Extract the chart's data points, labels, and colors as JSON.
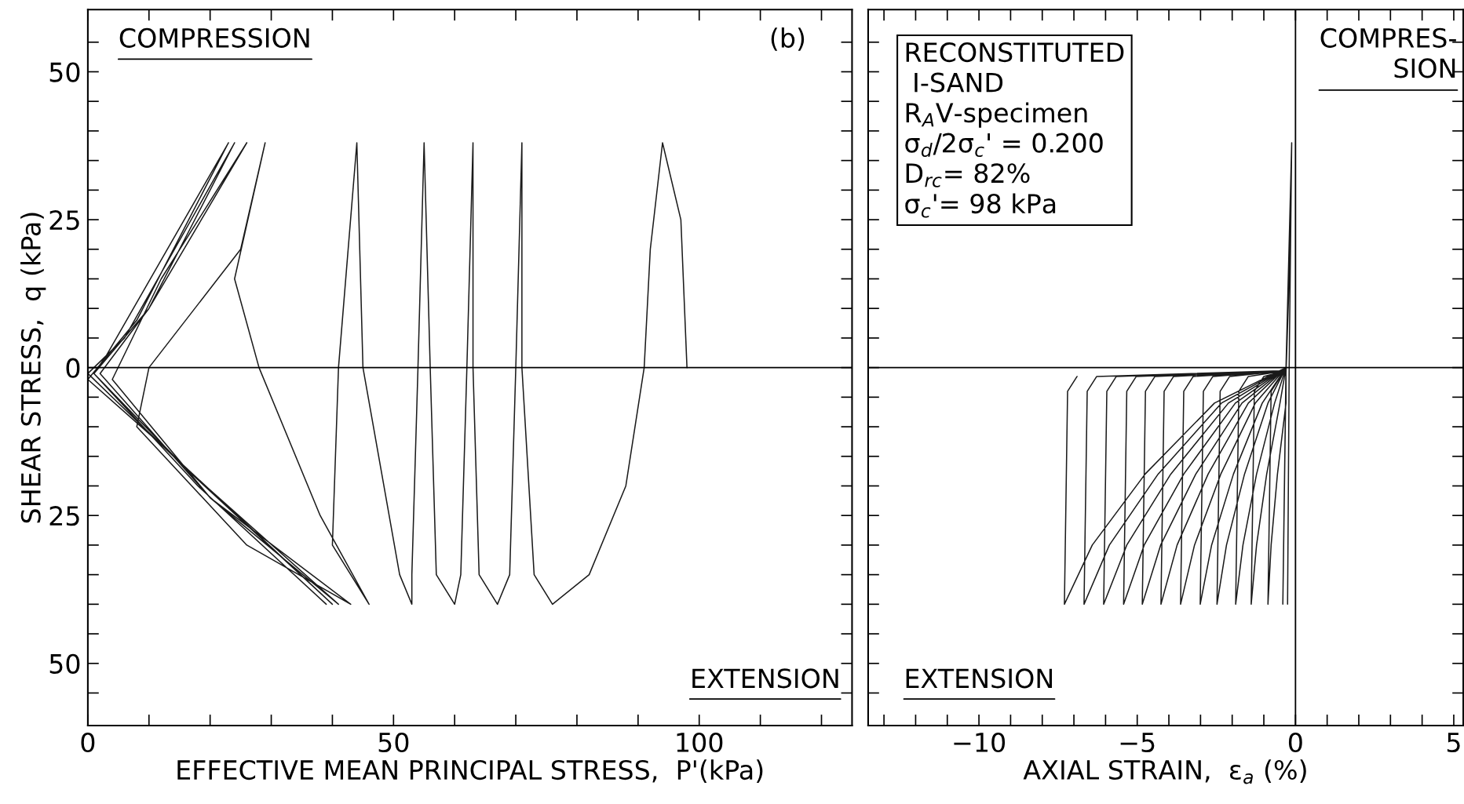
{
  "chart_data": [
    {
      "type": "line",
      "color": "#1a1a1a",
      "xlabel": "EFFECTIVE MEAN PRINCIPAL STRESS,  P'(kPa)",
      "ylabel": "SHEAR STRESS,  q (kPa)",
      "x": [
        98,
        97,
        94,
        92,
        91,
        88,
        82,
        76,
        73,
        71,
        71,
        70,
        69,
        67,
        64,
        63,
        63,
        62,
        61,
        60,
        57,
        56,
        55,
        54,
        53,
        53,
        51,
        45,
        44,
        41,
        40,
        46,
        38,
        28,
        24,
        29,
        25,
        10,
        8,
        26,
        43,
        20,
        4,
        12,
        26,
        10,
        2,
        20,
        41,
        16,
        1,
        10,
        24,
        6,
        0,
        17,
        40,
        12,
        0,
        8,
        23,
        3,
        1,
        18,
        39
      ],
      "values": [
        0,
        25,
        38,
        20,
        0,
        -20,
        -35,
        -40,
        -35,
        0,
        38,
        0,
        -35,
        -40,
        -35,
        0,
        38,
        0,
        -35,
        -40,
        -35,
        0,
        38,
        0,
        -35,
        -40,
        -35,
        0,
        38,
        0,
        -30,
        -40,
        -25,
        0,
        15,
        38,
        20,
        0,
        -10,
        -30,
        -40,
        -22,
        -2,
        15,
        38,
        10,
        -1,
        -22,
        -40,
        -17,
        -1,
        10,
        38,
        5,
        -1,
        -18,
        -40,
        -13,
        -2,
        8,
        38,
        2,
        -1,
        -20,
        -40
      ],
      "xlim": [
        0,
        125
      ],
      "ylim": [
        -60.5,
        60.5
      ],
      "xticks": [
        0,
        {
          "value": 10,
          "label": null
        },
        {
          "value": 20,
          "label": null
        },
        {
          "value": 30,
          "label": null
        },
        {
          "value": 40,
          "label": null
        },
        50,
        {
          "value": 60,
          "label": null
        },
        {
          "value": 70,
          "label": null
        },
        {
          "value": 80,
          "label": null
        },
        {
          "value": 90,
          "label": null
        },
        100,
        {
          "value": 110,
          "label": null
        },
        {
          "value": 120,
          "label": null
        }
      ],
      "yticks": [
        {
          "value": -55,
          "label": null
        },
        {
          "value": -50,
          "label": "50"
        },
        {
          "value": -45,
          "label": null
        },
        {
          "value": -40,
          "label": null
        },
        {
          "value": -35,
          "label": null
        },
        {
          "value": -30,
          "label": null
        },
        {
          "value": -25,
          "label": "25"
        },
        {
          "value": -20,
          "label": null
        },
        {
          "value": -15,
          "label": null
        },
        {
          "value": -10,
          "label": null
        },
        {
          "value": -5,
          "label": null
        },
        0,
        {
          "value": 5,
          "label": null
        },
        {
          "value": 10,
          "label": null
        },
        {
          "value": 15,
          "label": null
        },
        {
          "value": 20,
          "label": null
        },
        25,
        {
          "value": 30,
          "label": null
        },
        {
          "value": 35,
          "label": null
        },
        {
          "value": 40,
          "label": null
        },
        {
          "value": 45,
          "label": null
        },
        50,
        {
          "value": 55,
          "label": null
        }
      ],
      "ref_lines": [
        {
          "axis": "y",
          "value": 0
        }
      ],
      "annotations": [
        "COMPRESSION",
        "(b)",
        "EXTENSION"
      ],
      "grid": false
    },
    {
      "type": "line",
      "color": "#1a1a1a",
      "xlabel": "AXIAL STRAIN,  ε$_{a}$ (%)",
      "x": [
        -0.2,
        -0.12,
        -0.2,
        -0.25,
        -0.2,
        -0.12,
        -0.3,
        -0.4,
        -0.3,
        -0.2,
        -0.12,
        -0.3,
        -0.3,
        -0.57,
        -0.77,
        -0.87,
        -0.77,
        -0.47,
        -0.3,
        -0.2,
        -0.12,
        -0.3,
        -0.49,
        -0.91,
        -1.23,
        -1.4,
        -1.3,
        -1.0,
        -0.3,
        -0.2,
        -0.12,
        -0.3,
        -0.66,
        -1.23,
        -1.66,
        -1.89,
        -1.79,
        -1.49,
        -0.3,
        -0.2,
        -0.12,
        -0.3,
        -0.87,
        -1.61,
        -2.18,
        -2.48,
        -2.38,
        -2.08,
        -0.3,
        -0.2,
        -0.12,
        -0.3,
        -1.05,
        -1.96,
        -2.65,
        -3.01,
        -2.91,
        -2.61,
        -0.3,
        -0.2,
        -0.12,
        -0.3,
        -1.27,
        -2.36,
        -3.19,
        -3.63,
        -3.53,
        -3.23,
        -0.3,
        -0.2,
        -0.12,
        -0.3,
        -1.49,
        -2.76,
        -3.74,
        -4.25,
        -4.15,
        -3.85,
        -0.3,
        -0.2,
        -0.12,
        -0.3,
        -1.69,
        -3.15,
        -4.26,
        -4.84,
        -4.74,
        -4.44,
        -0.3,
        -0.2,
        -0.12,
        -0.3,
        -1.9,
        -3.53,
        -4.78,
        -5.43,
        -5.33,
        -5.03,
        -0.3,
        -0.2,
        -0.12,
        -0.3,
        -2.12,
        -3.94,
        -5.33,
        -6.06,
        -5.96,
        -5.66,
        -0.3,
        -0.2,
        -0.12,
        -0.3,
        -2.34,
        -4.34,
        -5.88,
        -6.68,
        -6.58,
        -6.28,
        -0.3,
        -0.2,
        -0.12,
        -0.3,
        -2.56,
        -4.75,
        -6.42,
        -7.3,
        -7.2,
        -6.9
      ],
      "values": [
        0,
        38,
        0,
        -40,
        0,
        38,
        0,
        -40,
        -1,
        15,
        38,
        0,
        -6,
        -18,
        -30,
        -40,
        -4,
        -1.5,
        -0.5,
        15,
        38,
        0,
        -6,
        -18,
        -30,
        -40,
        -4,
        -1.5,
        -0.5,
        15,
        38,
        0,
        -6,
        -18,
        -30,
        -40,
        -4,
        -1.5,
        -0.5,
        15,
        38,
        0,
        -6,
        -18,
        -30,
        -40,
        -4,
        -1.5,
        -0.5,
        15,
        38,
        0,
        -6,
        -18,
        -30,
        -40,
        -4,
        -1.5,
        -0.5,
        15,
        38,
        0,
        -6,
        -18,
        -30,
        -40,
        -4,
        -1.5,
        -0.5,
        15,
        38,
        0,
        -6,
        -18,
        -30,
        -40,
        -4,
        -1.5,
        -0.5,
        15,
        38,
        0,
        -6,
        -18,
        -30,
        -40,
        -4,
        -1.5,
        -0.5,
        15,
        38,
        0,
        -6,
        -18,
        -30,
        -40,
        -4,
        -1.5,
        -0.5,
        15,
        38,
        0,
        -6,
        -18,
        -30,
        -40,
        -4,
        -1.5,
        -0.5,
        15,
        38,
        0,
        -6,
        -18,
        -30,
        -40,
        -4,
        -1.5,
        -0.5,
        15,
        38,
        0,
        -6,
        -18,
        -30,
        -40,
        -4,
        -1.5
      ],
      "xlim": [
        -13.5,
        5.3
      ],
      "ylim": [
        -60.5,
        60.5
      ],
      "xticks": [
        {
          "value": -13,
          "label": null
        },
        {
          "value": -12,
          "label": null
        },
        {
          "value": -11,
          "label": null
        },
        {
          "value": -10,
          "label": "−10"
        },
        {
          "value": -9,
          "label": null
        },
        {
          "value": -8,
          "label": null
        },
        {
          "value": -7,
          "label": null
        },
        {
          "value": -6,
          "label": null
        },
        {
          "value": -5,
          "label": "−5"
        },
        {
          "value": -4,
          "label": null
        },
        {
          "value": -3,
          "label": null
        },
        {
          "value": -2,
          "label": null
        },
        {
          "value": -1,
          "label": null
        },
        0,
        {
          "value": 1,
          "label": null
        },
        {
          "value": 2,
          "label": null
        },
        {
          "value": 3,
          "label": null
        },
        {
          "value": 4,
          "label": null
        },
        5
      ],
      "yticks": [
        {
          "value": -55,
          "label": null
        },
        {
          "value": -50,
          "label": null
        },
        {
          "value": -45,
          "label": null
        },
        {
          "value": -40,
          "label": null
        },
        {
          "value": -35,
          "label": null
        },
        {
          "value": -30,
          "label": null
        },
        {
          "value": -25,
          "label": null
        },
        {
          "value": -20,
          "label": null
        },
        {
          "value": -15,
          "label": null
        },
        {
          "value": -10,
          "label": null
        },
        {
          "value": -5,
          "label": null
        },
        {
          "value": 0,
          "label": null
        },
        {
          "value": 5,
          "label": null
        },
        {
          "value": 10,
          "label": null
        },
        {
          "value": 15,
          "label": null
        },
        {
          "value": 20,
          "label": null
        },
        {
          "value": 25,
          "label": null
        },
        {
          "value": 30,
          "label": null
        },
        {
          "value": 35,
          "label": null
        },
        {
          "value": 40,
          "label": null
        },
        {
          "value": 45,
          "label": null
        },
        {
          "value": 50,
          "label": null
        },
        {
          "value": 55,
          "label": null
        }
      ],
      "tick_labels": "x",
      "ref_lines": [
        {
          "axis": "y",
          "value": 0
        },
        {
          "axis": "x",
          "value": 0
        }
      ],
      "annotations": [
        "RECONSTITUTED\n I-SAND\nR$_{A}$V-specimen\nσ$_{d}$/2σ$_{c}$' = 0.200\nD$_{rc}$= 82%\nσ$_{c}$'= 98 kPa",
        "COMPRES-\nSION",
        "EXTENSION"
      ],
      "grid": false
    }
  ]
}
